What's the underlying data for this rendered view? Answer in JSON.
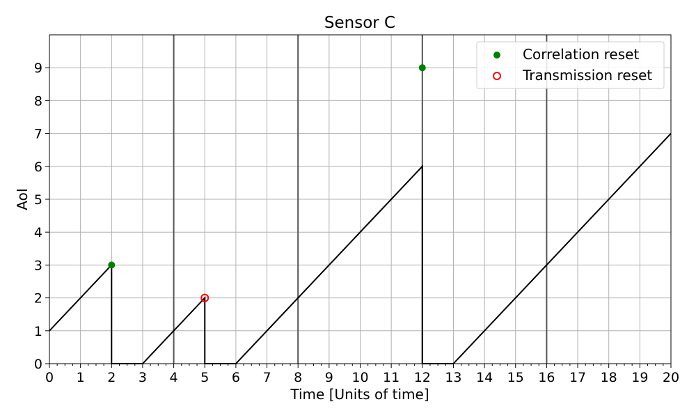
{
  "chart_data": {
    "type": "line",
    "title": "Sensor C",
    "xlabel": "Time [Units of time]",
    "ylabel": "AoI",
    "xlim": [
      0,
      20
    ],
    "ylim": [
      0,
      10
    ],
    "xticks": [
      0,
      1,
      2,
      3,
      4,
      5,
      6,
      7,
      8,
      9,
      10,
      11,
      12,
      13,
      14,
      15,
      16,
      17,
      18,
      19,
      20
    ],
    "yticks": [
      0,
      1,
      2,
      3,
      4,
      5,
      6,
      7,
      8,
      9
    ],
    "grid": true,
    "legend_position": "top-right",
    "vertical_markers": [
      4,
      8,
      12,
      16
    ],
    "series": [
      {
        "name": "",
        "color": "#000000",
        "points": [
          [
            0,
            1
          ],
          [
            2,
            3
          ],
          [
            2,
            0
          ],
          [
            3,
            0
          ],
          [
            5,
            2
          ],
          [
            5,
            0
          ],
          [
            6,
            0
          ],
          [
            12,
            6
          ],
          [
            12,
            0
          ],
          [
            13,
            0
          ],
          [
            20,
            7
          ]
        ]
      }
    ],
    "scatter": [
      {
        "name": "Correlation reset",
        "style": "filled",
        "color": "#008000",
        "points": [
          [
            2,
            3
          ],
          [
            12,
            9
          ]
        ]
      },
      {
        "name": "Transmission reset",
        "style": "hollow",
        "color": "#ff0000",
        "points": [
          [
            5,
            2
          ]
        ]
      }
    ]
  }
}
